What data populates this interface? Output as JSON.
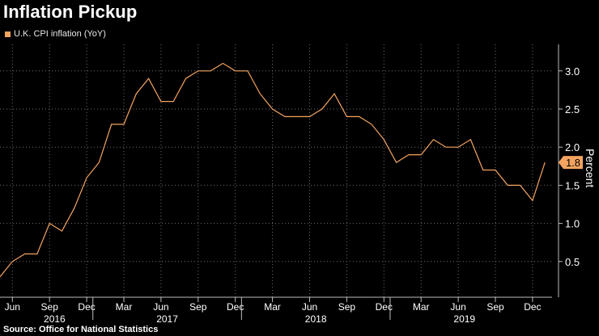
{
  "title": "Inflation Pickup",
  "legend": "U.K. CPI inflation (YoY)",
  "source": "Source: Office for National Statistics",
  "colors": {
    "series": "#f4a460",
    "background": "#000000",
    "grid": "#6e6e6e"
  },
  "chart_data": {
    "type": "line",
    "ylabel": "Percent",
    "ylim": [
      0.0,
      3.4
    ],
    "yticks": [
      "0.5",
      "1.0",
      "1.5",
      "2.0",
      "2.5",
      "3.0"
    ],
    "grid": true,
    "last_value_label": "1.8",
    "month_ticks": [
      "Jun",
      "Sep",
      "Dec",
      "Mar",
      "Jun",
      "Sep",
      "Dec",
      "Mar",
      "Jun",
      "Sep",
      "Dec",
      "Mar",
      "Jun",
      "Sep",
      "Dec"
    ],
    "year_labels": [
      "2016",
      "2017",
      "2018",
      "2019"
    ],
    "series": [
      {
        "x": [
          "2016-05",
          "2016-06",
          "2016-07",
          "2016-08",
          "2016-09",
          "2016-10",
          "2016-11",
          "2016-12",
          "2017-01",
          "2017-02",
          "2017-03",
          "2017-04",
          "2017-05",
          "2017-06",
          "2017-07",
          "2017-08",
          "2017-09",
          "2017-10",
          "2017-11",
          "2017-12",
          "2018-01",
          "2018-02",
          "2018-03",
          "2018-04",
          "2018-05",
          "2018-06",
          "2018-07",
          "2018-08",
          "2018-09",
          "2018-10",
          "2018-11",
          "2018-12",
          "2019-01",
          "2019-02",
          "2019-03",
          "2019-04",
          "2019-05",
          "2019-06",
          "2019-07",
          "2019-08",
          "2019-09",
          "2019-10",
          "2019-11",
          "2019-12",
          "2020-01"
        ],
        "values": [
          0.3,
          0.5,
          0.6,
          0.6,
          1.0,
          0.9,
          1.2,
          1.6,
          1.8,
          2.3,
          2.3,
          2.7,
          2.9,
          2.6,
          2.6,
          2.9,
          3.0,
          3.0,
          3.1,
          3.0,
          3.0,
          2.7,
          2.5,
          2.4,
          2.4,
          2.4,
          2.5,
          2.7,
          2.4,
          2.4,
          2.3,
          2.1,
          1.8,
          1.9,
          1.9,
          2.1,
          2.0,
          2.0,
          2.1,
          1.7,
          1.7,
          1.5,
          1.5,
          1.3,
          1.8
        ]
      }
    ]
  }
}
